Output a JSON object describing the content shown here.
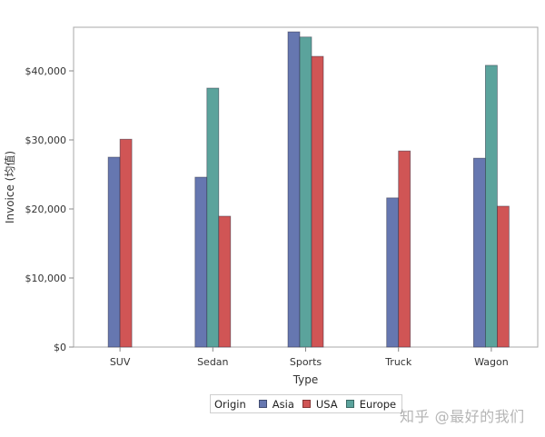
{
  "chart_data": {
    "type": "bar",
    "title": "",
    "xlabel": "Type",
    "ylabel": "Invoice (均值)",
    "categories": [
      "SUV",
      "Sedan",
      "Sports",
      "Truck",
      "Wagon"
    ],
    "series": [
      {
        "name": "Asia",
        "color": "#6677b0",
        "values": [
          27500,
          24600,
          45650,
          21600,
          27350
        ]
      },
      {
        "name": "USA",
        "color": "#d05555",
        "values": [
          30100,
          18950,
          42100,
          28400,
          20400
        ]
      },
      {
        "name": "Europe",
        "color": "#5ba39c",
        "values": [
          null,
          37500,
          44900,
          null,
          40800
        ]
      }
    ],
    "series_order_in_group": [
      "Asia",
      "Europe",
      "USA"
    ],
    "ylim": [
      0,
      46300
    ],
    "yticks": [
      0,
      10000,
      20000,
      30000,
      40000
    ],
    "ytick_labels": [
      "$0",
      "$10,000",
      "$20,000",
      "$30,000",
      "$40,000"
    ],
    "grid": false,
    "legend_position": "bottom",
    "legend_title": "Origin"
  },
  "legend": {
    "title": "Origin",
    "items": [
      {
        "label": "Asia",
        "color": "#6677b0"
      },
      {
        "label": "USA",
        "color": "#d05555"
      },
      {
        "label": "Europe",
        "color": "#5ba39c"
      }
    ]
  },
  "watermark": "知乎 @最好的我们"
}
